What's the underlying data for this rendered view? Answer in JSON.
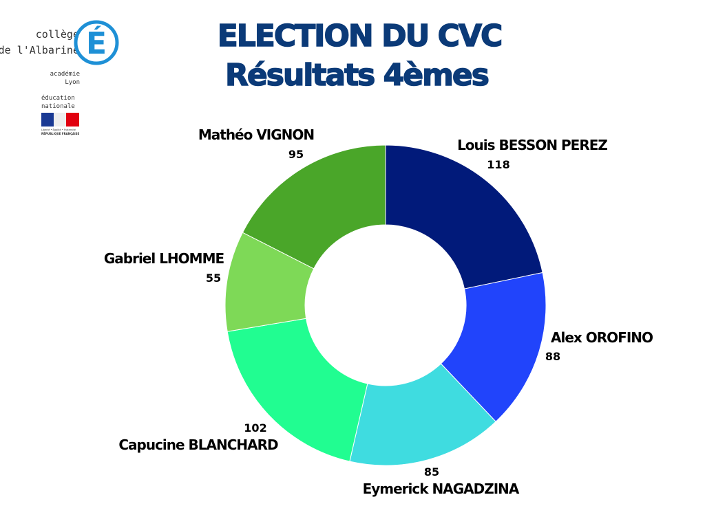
{
  "logo": {
    "line1": "collège",
    "line2": "de l'Albarine",
    "letter": "É",
    "academie": "académie",
    "city": "Lyon",
    "edu1": "éducation",
    "edu2": "nationale",
    "motto": "Liberté • Égalité • Fraternité",
    "republic": "RÉPUBLIQUE FRANÇAISE"
  },
  "chart_data": {
    "type": "donut",
    "title": "ELECTION DU CVC",
    "subtitle": "Résultats 4èmes",
    "categories": [
      "Louis BESSON PEREZ",
      "Alex OROFINO",
      "Eymerick NAGADZINA",
      "Capucine BLANCHARD",
      "Gabriel LHOMME",
      "Mathéo VIGNON"
    ],
    "values": [
      118,
      88,
      85,
      102,
      55,
      95
    ],
    "colors": [
      "#011a7a",
      "#2144fb",
      "#3fdce0",
      "#21fd91",
      "#7ed957",
      "#4aa629"
    ]
  }
}
